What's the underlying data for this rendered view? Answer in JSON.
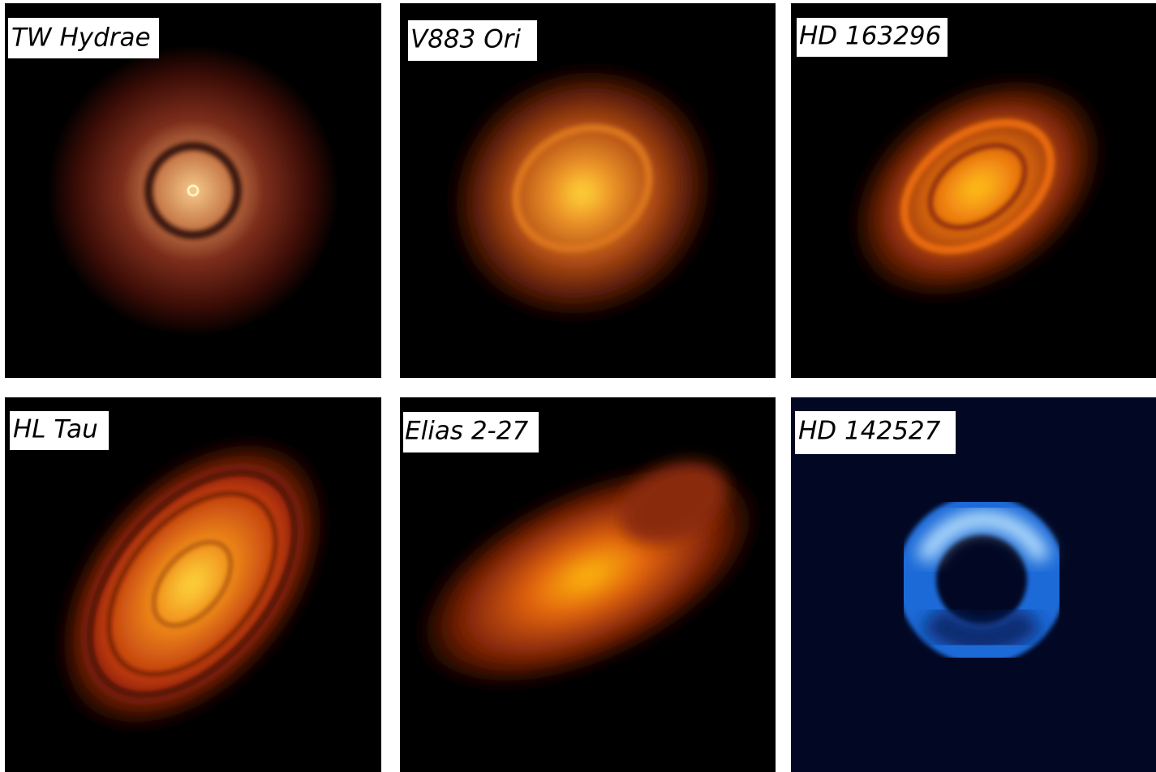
{
  "panels": [
    {
      "label": "TW Hydrae"
    },
    {
      "label": "V883 Ori"
    },
    {
      "label": "HD 163296"
    },
    {
      "label": "HL Tau"
    },
    {
      "label": "Elias 2-27"
    },
    {
      "label": "HD 142527"
    }
  ]
}
